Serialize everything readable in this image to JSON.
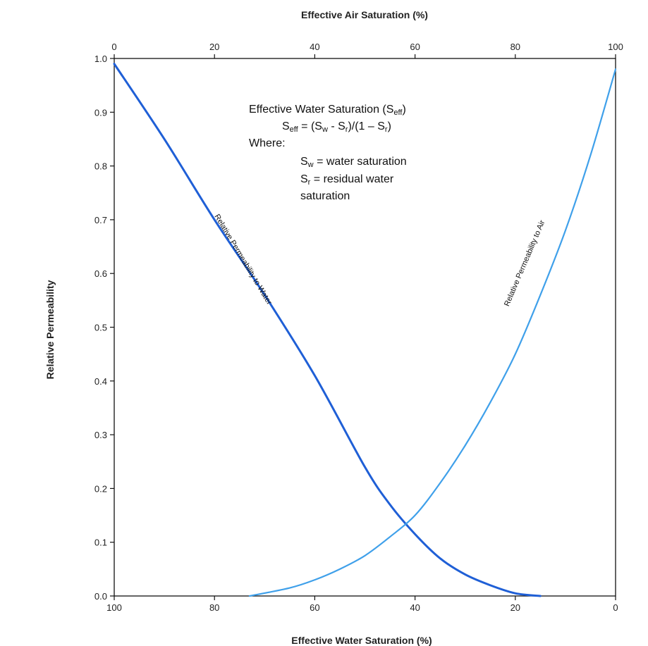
{
  "chart_data": {
    "type": "line",
    "ylabel": "Relative Permeability",
    "xlabel_bottom": "Effective Water Saturation (%)",
    "xlabel_top": "Effective Air Saturation (%)",
    "ylim": [
      0,
      1
    ],
    "yticks": [
      "0.0",
      "0.1",
      "0.2",
      "0.3",
      "0.4",
      "0.5",
      "0.6",
      "0.7",
      "0.8",
      "0.9",
      "1.0"
    ],
    "xlim_bottom": [
      100,
      0
    ],
    "xticks_bottom": [
      "100",
      "80",
      "60",
      "40",
      "20",
      "0"
    ],
    "xlim_top": [
      0,
      100
    ],
    "xticks_top": [
      "0",
      "20",
      "40",
      "60",
      "80",
      "100"
    ],
    "grid": false,
    "series": [
      {
        "name": "Relative Permeability to Water",
        "color": "#1f5fd6",
        "x_water_saturation": [
          100,
          90,
          80,
          70,
          60,
          50,
          45,
          40,
          35,
          30,
          25,
          20,
          15
        ],
        "y": [
          0.99,
          0.85,
          0.7,
          0.56,
          0.41,
          0.24,
          0.17,
          0.115,
          0.07,
          0.04,
          0.02,
          0.005,
          0.0
        ]
      },
      {
        "name": "Relative Permeability to Air",
        "color": "#3fa0ea",
        "x_water_saturation": [
          73,
          65,
          60,
          55,
          50,
          45,
          40,
          35,
          30,
          25,
          20,
          15,
          10,
          5,
          0
        ],
        "y": [
          0.0,
          0.015,
          0.03,
          0.05,
          0.075,
          0.11,
          0.15,
          0.21,
          0.28,
          0.36,
          0.45,
          0.56,
          0.68,
          0.82,
          0.98
        ]
      }
    ],
    "annotation": {
      "heading": "Effective Water Saturation (S",
      "heading_sub": "eff",
      "heading_end": ")",
      "formula_pre": "S",
      "formula_sub1": "eff",
      "formula_mid1": " = (S",
      "formula_sub2": "w",
      "formula_mid2": " - S",
      "formula_sub3": "r",
      "formula_mid3": ")/(1 – S",
      "formula_sub4": "r",
      "formula_end": ")",
      "where": "Where:",
      "def1_pre": "S",
      "def1_sub": "w",
      "def1_text": " = water saturation",
      "def2_pre": "S",
      "def2_sub": "r",
      "def2_text": " = residual water",
      "def2_cont": "saturation"
    }
  }
}
